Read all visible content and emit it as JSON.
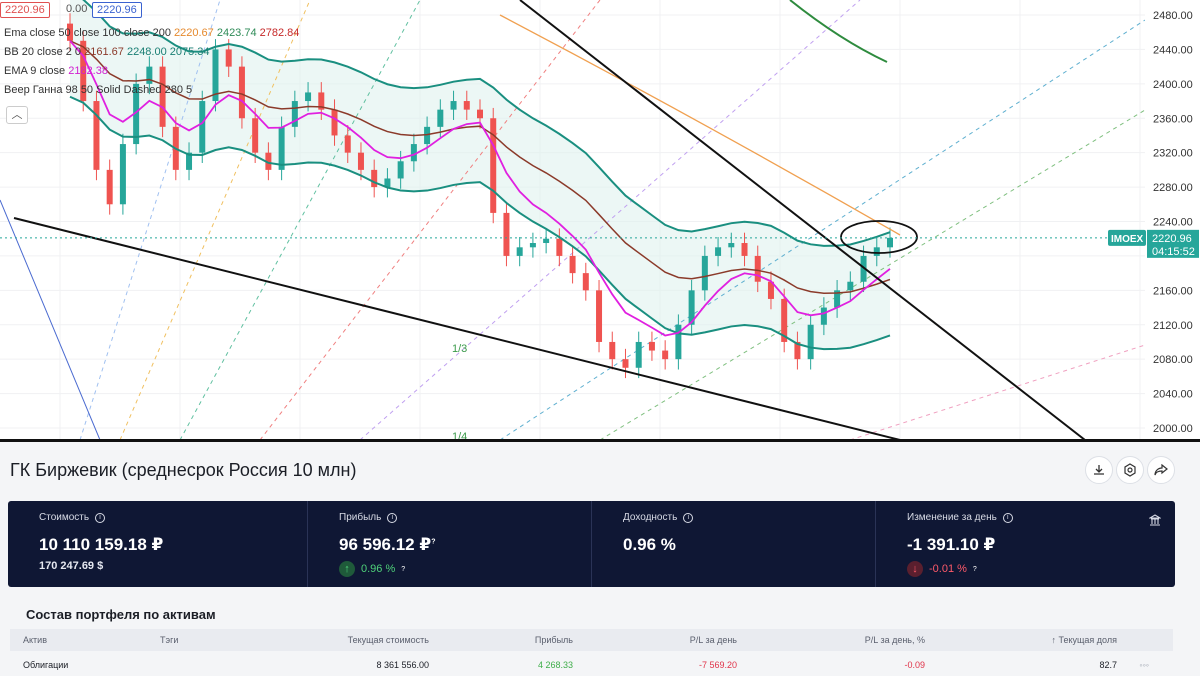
{
  "chart": {
    "ohlc_open": "2220.96",
    "ohlc_zero": "0.00",
    "ohlc_close": "2220.96",
    "indicators": {
      "ema_label": "Ema close 50 close 100 close 200",
      "ema_v1": "2220.67",
      "ema_v2": "2423.74",
      "ema_v3": "2782.84",
      "bb_label": "BB 20 close 2 0",
      "bb_v1": "2161.67",
      "bb_v2": "2248.00",
      "bb_v3": "2075.34",
      "ema9_label": "EMA 9 close",
      "ema9_v": "2182.38",
      "gann_label": "Веер Ганна 98 50 Solid Dashed 280 5"
    },
    "legend_toggle": "︿",
    "price_axis": [
      "2480.00",
      "2440.00",
      "2400.00",
      "2360.00",
      "2320.00",
      "2280.00",
      "2240.00",
      "2160.00",
      "2120.00",
      "2080.00",
      "2040.00",
      "2000.00"
    ],
    "ticker": "IMOEX",
    "current_price": "2220.96",
    "countdown": "04:15:52",
    "gann_labels": [
      "1/3",
      "1/4"
    ],
    "colors": {
      "up": "#26a69a",
      "down": "#ef5350",
      "ema_orange": "#f0a050",
      "ema_green": "#2e8b3e",
      "bb": "#1a8f80",
      "ema9": "#e020e0",
      "brown": "#8b3a2a"
    }
  },
  "portfolio": {
    "title": "ГК Биржевик (среднесрок Россия 10 млн)",
    "stats": {
      "value_label": "Стоимость",
      "value_main": "10 110 159.18 ₽",
      "value_sub": "170 247.69 $",
      "profit_label": "Прибыль",
      "profit_main": "96 596.12 ₽",
      "profit_pct": "0.96 %",
      "yield_label": "Доходность",
      "yield_main": "0.96 %",
      "day_label": "Изменение за день",
      "day_main": "-1 391.10 ₽",
      "day_pct": "-0.01 %",
      "q_mark": "?"
    },
    "table": {
      "title": "Состав портфеля по активам",
      "headers": {
        "asset": "Актив",
        "tags": "Тэги",
        "current_value": "Текущая стоимость",
        "profit": "Прибыль",
        "pl_day": "P/L за день",
        "pl_day_pct": "P/L за день, %",
        "share": "Текущая доля"
      },
      "share_sort_arrow": "↑",
      "row": {
        "asset": "Облигации",
        "current_value": "8 361 556.00",
        "profit": "4 268.33",
        "pl_day": "-7 569.20",
        "pl_day_pct": "-0.09",
        "share": "82.7",
        "more": "◦◦◦"
      }
    }
  }
}
